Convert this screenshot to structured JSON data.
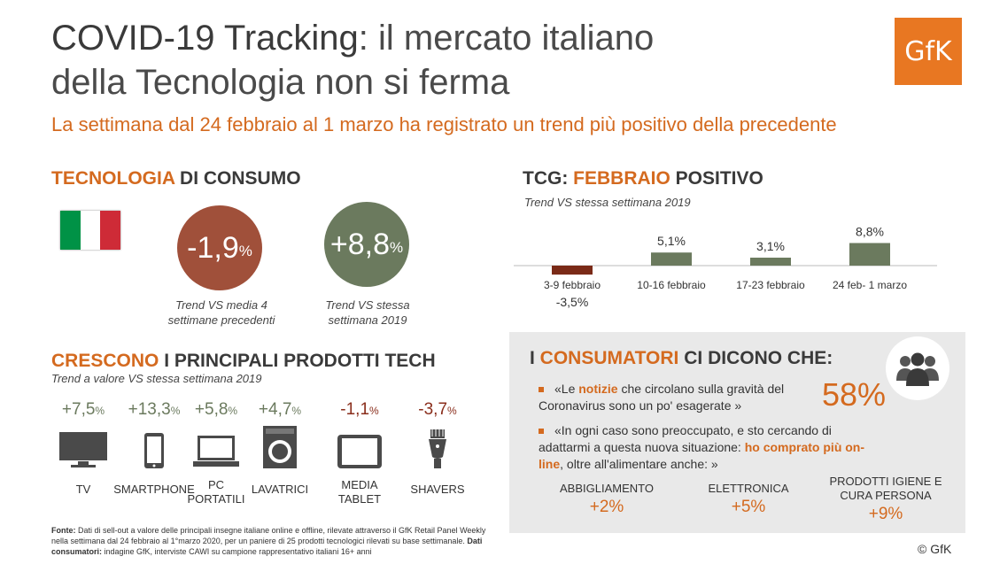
{
  "header": {
    "title_bold": "COVID-19 Tracking",
    "title_rest_line1": ": il mercato italiano",
    "title_line2": "della Tecnologia non si ferma",
    "subtitle": "La settimana dal 24 febbraio al 1 marzo ha registrato un trend più positivo della precedente",
    "logo_text": "GfK"
  },
  "consumer_tech": {
    "heading_orange": "TECNOLOGIA",
    "heading_rest": " DI CONSUMO",
    "kpi1": {
      "value": "-1,9",
      "unit": "%",
      "caption_line1": "Trend VS media 4",
      "caption_line2": "settimane precedenti",
      "color": "#a0503a"
    },
    "kpi2": {
      "value": "+8,8",
      "unit": "%",
      "caption_line1": "Trend VS stessa",
      "caption_line2": "settimana 2019",
      "color": "#6b7a5e"
    },
    "flag_colors": [
      "#009246",
      "#ffffff",
      "#ce2b37"
    ]
  },
  "tcg": {
    "heading_pre": "TCG: ",
    "heading_orange": "FEBBRAIO",
    "heading_rest": " POSITIVO",
    "note": "Trend VS stessa settimana 2019"
  },
  "chart_data": {
    "type": "bar",
    "categories": [
      "3-9 febbraio",
      "10-16 febbraio",
      "17-23 febbraio",
      "24 feb- 1 marzo"
    ],
    "values": [
      -3.5,
      5.1,
      3.1,
      8.8
    ],
    "value_labels": [
      "-3,5%",
      "5,1%",
      "3,1%",
      "8,8%"
    ],
    "colors": {
      "negative": "#7a2a17",
      "positive": "#6b7a5e"
    },
    "title": "",
    "xlabel": "",
    "ylabel": ""
  },
  "products": {
    "heading_orange": "CRESCONO",
    "heading_rest": " I PRINCIPALI PRODOTTI TECH",
    "note": "Trend a valore VS stessa settimana 2019",
    "items": [
      {
        "value": "+7,5",
        "unit": "%",
        "label": "TV",
        "icon": "tv-icon"
      },
      {
        "value": "+13,3",
        "unit": "%",
        "label": "SMARTPHONE",
        "icon": "smartphone-icon"
      },
      {
        "value": "+5,8",
        "unit": "%",
        "label": "PC PORTATILI",
        "icon": "laptop-icon"
      },
      {
        "value": "+4,7",
        "unit": "%",
        "label": "LAVATRICI",
        "icon": "washing-machine-icon"
      },
      {
        "value": "-1,1",
        "unit": "%",
        "label": "MEDIA TABLET",
        "icon": "tablet-icon"
      },
      {
        "value": "-3,7",
        "unit": "%",
        "label": "SHAVERS",
        "icon": "shaver-icon"
      }
    ]
  },
  "consumers": {
    "heading_pre": "I ",
    "heading_orange": "CONSUMATORI",
    "heading_rest": " CI DICONO CHE:",
    "bullet1_pre": "«Le ",
    "bullet1_orange": "notizie",
    "bullet1_rest": " che circolano sulla gravità del Coronavirus sono un po' esagerate »",
    "big_pct": "58%",
    "bullet2_pre": "«In ogni caso sono preoccupato, e sto cercando di adattarmi a questa nuova situazione: ",
    "bullet2_orange": "ho comprato più on-line",
    "bullet2_rest": ", oltre all'alimentare anche: »",
    "categories": [
      {
        "label": "ABBIGLIAMENTO",
        "value": "+2%"
      },
      {
        "label": "ELETTRONICA",
        "value": "+5%"
      },
      {
        "label": "PRODOTTI IGIENE E CURA PERSONA",
        "value": "+9%"
      }
    ],
    "people_icon": "people-icon"
  },
  "footer": {
    "fonte_label": "Fonte:",
    "fonte_text": " Dati di sell-out a valore delle principali insegne italiane online e offline, rilevate attraverso il GfK Retail Panel Weekly nella settimana dal 24 febbraio al 1°marzo 2020, per un paniere di 25 prodotti tecnologici rilevati su base settimanale. ",
    "dati_label": "Dati consumatori:",
    "dati_text": " indagine GfK, interviste CAWI su campione rappresentativo italiani 16+ anni",
    "copyright": "© GfK"
  }
}
